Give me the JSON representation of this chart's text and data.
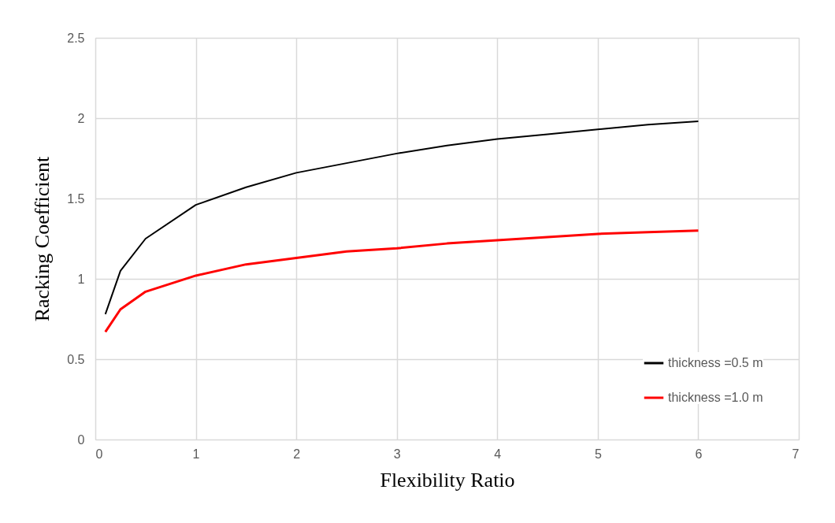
{
  "chart_data": {
    "type": "line",
    "xlabel": "Flexibility Ratio",
    "ylabel": "Racking Coefficient",
    "x": [
      0.1,
      0.25,
      0.5,
      1,
      1.5,
      2,
      2.5,
      3,
      3.5,
      4,
      4.5,
      5,
      5.5,
      6
    ],
    "series": [
      {
        "name": "thickness =0.5 m",
        "color": "#000000",
        "values": [
          0.78,
          1.05,
          1.25,
          1.46,
          1.57,
          1.66,
          1.72,
          1.78,
          1.83,
          1.87,
          1.9,
          1.93,
          1.96,
          1.98
        ]
      },
      {
        "name": "thickness =1.0 m",
        "color": "#ff0000",
        "values": [
          0.67,
          0.81,
          0.92,
          1.02,
          1.09,
          1.13,
          1.17,
          1.19,
          1.22,
          1.24,
          1.26,
          1.28,
          1.29,
          1.3
        ]
      }
    ],
    "xlim": [
      0,
      7
    ],
    "xticks": [
      0,
      1,
      2,
      3,
      4,
      5,
      6,
      7
    ],
    "ylim": [
      0,
      2.5
    ],
    "yticks": [
      0,
      0.5,
      1,
      1.5,
      2,
      2.5
    ],
    "grid": true,
    "legend": "bottom right",
    "marker": "none",
    "line_style": "solid"
  }
}
